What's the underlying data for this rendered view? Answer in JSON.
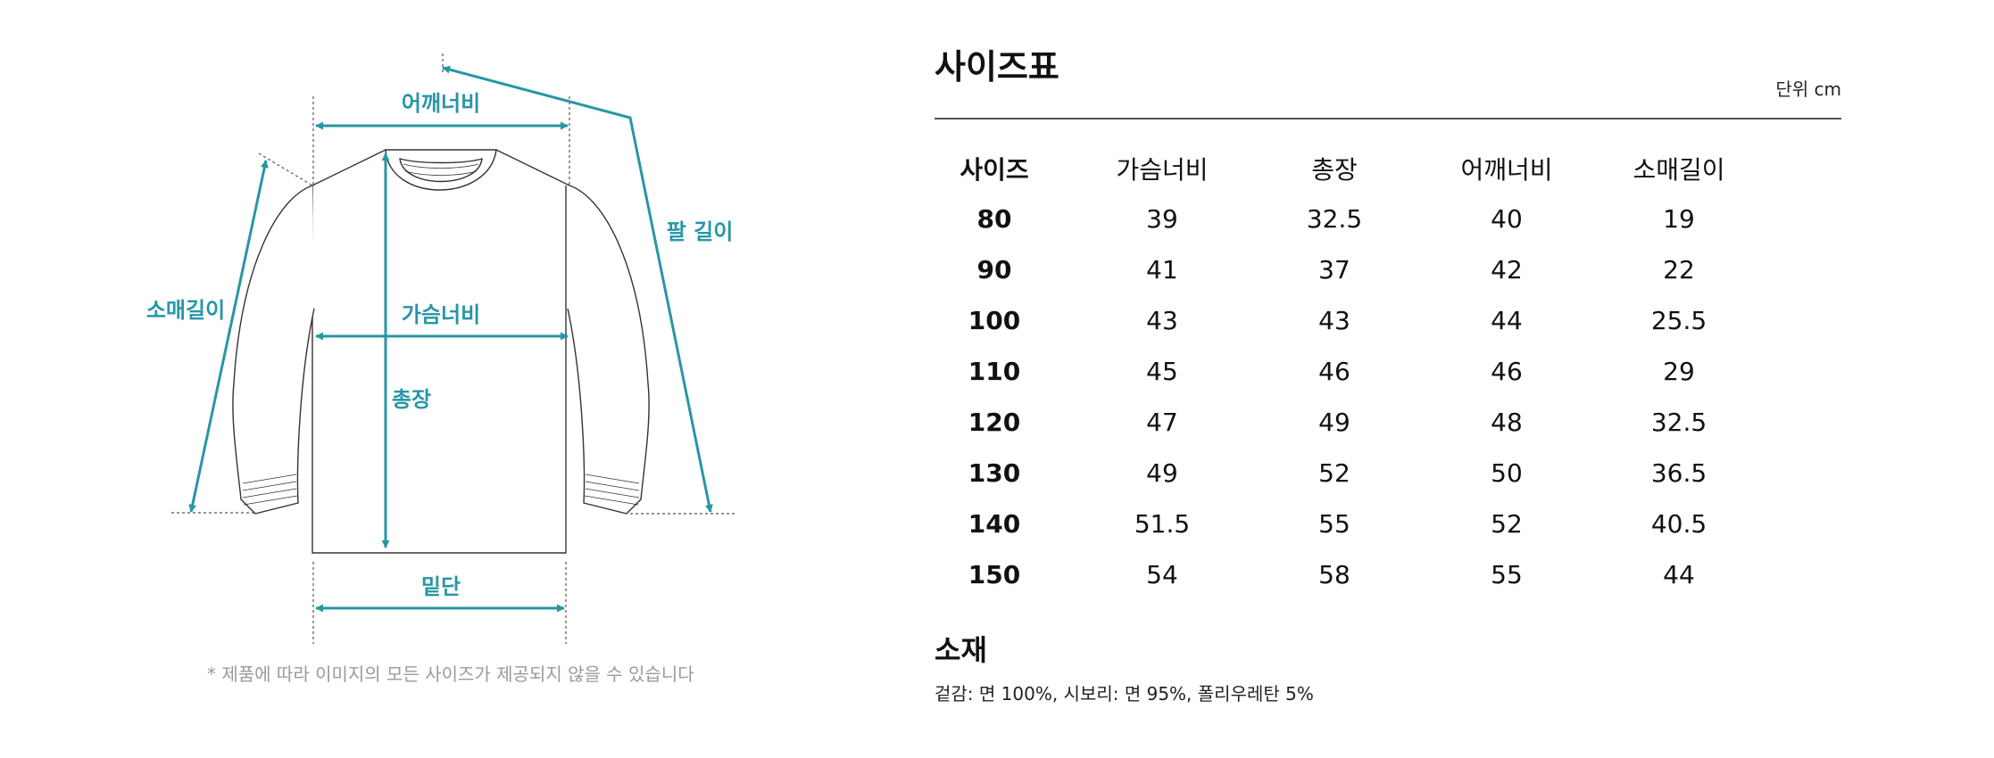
{
  "diagram": {
    "labels": {
      "shoulder": "어깨너비",
      "arm": "팔 길이",
      "sleeve": "소매길이",
      "chest": "가슴너비",
      "length": "총장",
      "hem": "밑단"
    },
    "caption": "* 제품에 따라 이미지의 모든 사이즈가 제공되지 않을 수 있습니다",
    "accent_color": "#2796a6"
  },
  "size_table": {
    "title": "사이즈표",
    "unit": "단위 cm",
    "headers": [
      "사이즈",
      "가슴너비",
      "총장",
      "어깨너비",
      "소매길이"
    ],
    "rows": [
      [
        "80",
        "39",
        "32.5",
        "40",
        "19"
      ],
      [
        "90",
        "41",
        "37",
        "42",
        "22"
      ],
      [
        "100",
        "43",
        "43",
        "44",
        "25.5"
      ],
      [
        "110",
        "45",
        "46",
        "46",
        "29"
      ],
      [
        "120",
        "47",
        "49",
        "48",
        "32.5"
      ],
      [
        "130",
        "49",
        "52",
        "50",
        "36.5"
      ],
      [
        "140",
        "51.5",
        "55",
        "52",
        "40.5"
      ],
      [
        "150",
        "54",
        "58",
        "55",
        "44"
      ]
    ]
  },
  "material": {
    "title": "소재",
    "text": "겉감: 면 100%, 시보리: 면 95%, 폴리우레탄 5%"
  }
}
